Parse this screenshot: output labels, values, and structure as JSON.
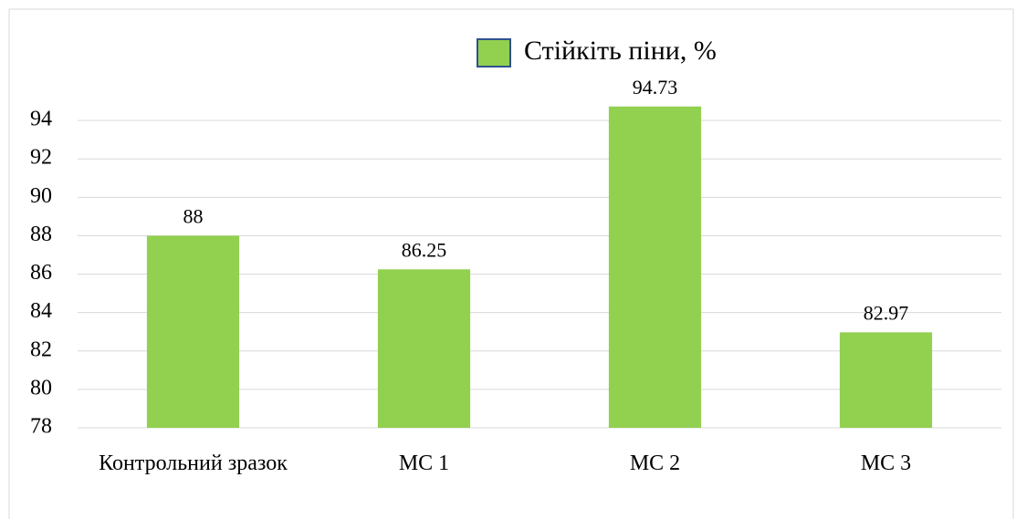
{
  "chart_data": {
    "type": "bar",
    "categories": [
      "Контрольний зразок",
      "МС 1",
      "МС 2",
      "МС 3"
    ],
    "series": [
      {
        "name": "Стійкіть піни, %",
        "color": "#92d050",
        "values": [
          88,
          86.25,
          94.73,
          82.97
        ]
      }
    ],
    "ylim": [
      78,
      96
    ],
    "yticks": [
      78,
      80,
      82,
      84,
      86,
      88,
      90,
      92,
      94
    ],
    "grid": true,
    "legend": "top"
  }
}
